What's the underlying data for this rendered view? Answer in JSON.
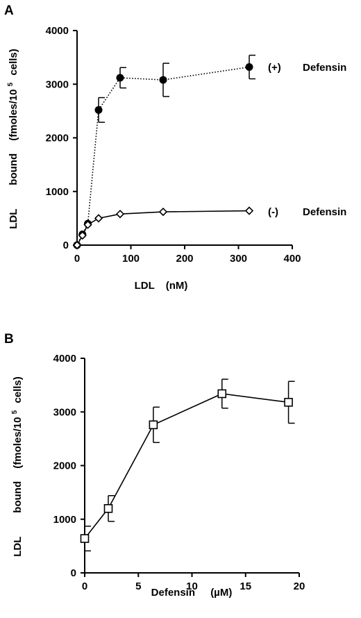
{
  "chart_data": [
    {
      "panel": "A",
      "type": "line",
      "xlabel": "LDL (nM)",
      "ylabel": "LDL bound (fmoles/10^5 cells)",
      "ylabel_parts": [
        "LDL",
        "bound",
        "(fmoles/10",
        "5",
        "cells)"
      ],
      "xlim": [
        0,
        400
      ],
      "ylim": [
        0,
        4000
      ],
      "xticks": [
        0,
        100,
        200,
        300,
        400
      ],
      "yticks": [
        0,
        1000,
        2000,
        3000,
        4000
      ],
      "grid": false,
      "series": [
        {
          "name": "(+) Defensin",
          "label_parts": [
            "(+)",
            "Defensin"
          ],
          "marker": "filled-circle",
          "line": "dotted",
          "x": [
            0,
            10,
            20,
            40,
            80,
            160,
            320
          ],
          "y": [
            0,
            200,
            400,
            2520,
            3120,
            3080,
            3320
          ],
          "err": [
            0,
            0,
            0,
            230,
            190,
            310,
            220
          ]
        },
        {
          "name": "(-) Defensin",
          "label_parts": [
            "(-)",
            "Defensin"
          ],
          "marker": "open-diamond",
          "line": "solid",
          "x": [
            0,
            10,
            20,
            40,
            80,
            160,
            320
          ],
          "y": [
            0,
            180,
            380,
            500,
            580,
            620,
            640
          ],
          "err": [
            0,
            0,
            0,
            0,
            0,
            0,
            0
          ]
        }
      ]
    },
    {
      "panel": "B",
      "type": "line",
      "xlabel": "Defensin (µM)",
      "xlabel_parts": [
        "Defensin",
        "(µM)"
      ],
      "ylabel": "LDL bound (fmoles/10^5 cells)",
      "ylabel_parts": [
        "LDL",
        "bound",
        "(fmoles/10",
        "5",
        "cells)"
      ],
      "xlim": [
        0,
        20
      ],
      "ylim": [
        0,
        4000
      ],
      "xticks": [
        0,
        5,
        10,
        15,
        20
      ],
      "yticks": [
        0,
        1000,
        2000,
        3000,
        4000
      ],
      "grid": false,
      "series": [
        {
          "marker": "open-square",
          "line": "solid",
          "x": [
            0,
            2.2,
            6.4,
            12.8,
            19
          ],
          "y": [
            640,
            1200,
            2760,
            3340,
            3180
          ],
          "err": [
            230,
            240,
            330,
            270,
            390
          ]
        }
      ]
    }
  ],
  "figure_text": {
    "panel_a_letter": "A",
    "panel_b_letter": "B",
    "panel_a_xlabel_parts": [
      "LDL",
      "(nM)"
    ]
  }
}
